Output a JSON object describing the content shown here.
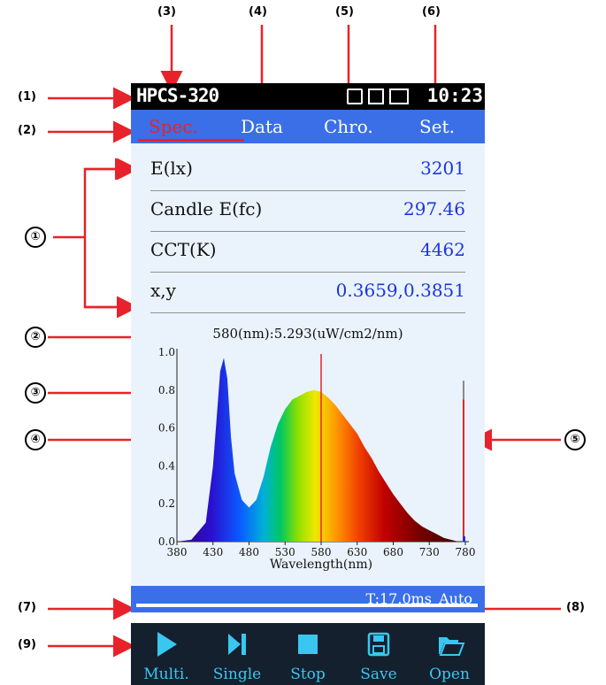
{
  "annotations": {
    "top": [
      "(3)",
      "(4)",
      "(5)",
      "(6)"
    ],
    "left": [
      "(1)",
      "(2)",
      "(7)",
      "(9)"
    ],
    "right": [
      "(8)"
    ],
    "circled": [
      "①",
      "②",
      "③",
      "④",
      "⑤"
    ]
  },
  "statusbar": {
    "model": "HPCS-320",
    "time": "10:23"
  },
  "tabs": [
    {
      "label": "Spec.",
      "active": true
    },
    {
      "label": "Data",
      "active": false
    },
    {
      "label": "Chro.",
      "active": false
    },
    {
      "label": "Set.",
      "active": false
    }
  ],
  "measurements": [
    {
      "label": "E(lx)",
      "value": "3201"
    },
    {
      "label": "Candle E(fc)",
      "value": "297.46"
    },
    {
      "label": "CCT(K)",
      "value": "4462"
    },
    {
      "label": "x,y",
      "value": "0.3659,0.3851"
    }
  ],
  "peak_info": "580(nm):5.293(uW/cm2/nm)",
  "chart_data": {
    "type": "area",
    "xlabel": "Wavelength(nm)",
    "ylabel": "",
    "xlim": [
      380,
      780
    ],
    "ylim": [
      0,
      1.0
    ],
    "x_ticks": [
      "380",
      "430",
      "480",
      "530",
      "580",
      "630",
      "680",
      "730",
      "780"
    ],
    "y_ticks": [
      "0.0",
      "0.2",
      "0.4",
      "0.6",
      "0.8",
      "1.0"
    ],
    "x": [
      380,
      400,
      420,
      430,
      440,
      445,
      450,
      455,
      460,
      470,
      480,
      490,
      500,
      510,
      520,
      530,
      540,
      550,
      560,
      570,
      580,
      590,
      600,
      610,
      620,
      630,
      640,
      650,
      660,
      670,
      680,
      690,
      700,
      710,
      720,
      730,
      740,
      750,
      760,
      770,
      780
    ],
    "values": [
      0.0,
      0.01,
      0.1,
      0.4,
      0.9,
      0.97,
      0.86,
      0.55,
      0.36,
      0.22,
      0.18,
      0.22,
      0.34,
      0.5,
      0.62,
      0.7,
      0.75,
      0.77,
      0.79,
      0.8,
      0.79,
      0.76,
      0.72,
      0.67,
      0.62,
      0.57,
      0.5,
      0.44,
      0.37,
      0.31,
      0.25,
      0.2,
      0.15,
      0.11,
      0.08,
      0.06,
      0.04,
      0.02,
      0.01,
      0.0,
      0.0
    ],
    "cursor_nm": 580,
    "right_level_bar": {
      "max": 0.8,
      "level": 0.75
    }
  },
  "infobar": {
    "integration_time": "T:17.0ms",
    "mode": "Auto"
  },
  "toolbar": [
    {
      "label": "Multi.",
      "icon": "play-icon"
    },
    {
      "label": "Single",
      "icon": "skip-next-icon"
    },
    {
      "label": "Stop",
      "icon": "stop-icon"
    },
    {
      "label": "Save",
      "icon": "save-icon"
    },
    {
      "label": "Open",
      "icon": "folder-open-icon"
    }
  ],
  "colors": {
    "tab_bar": "#3a6fe8",
    "active_tab": "#e8222a",
    "value_text": "#1c35e0",
    "toolbar_bg": "#14202e",
    "toolbar_text": "#39c7f0",
    "annotation_arrow": "#e8222a"
  }
}
